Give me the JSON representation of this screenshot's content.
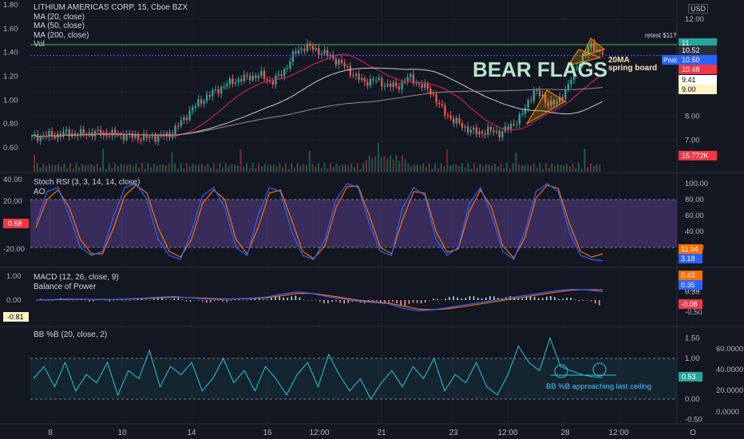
{
  "symbol": "LITHIUM AMERICAS CORP, 15, Cboe BZX",
  "currency": "USD",
  "indicators_main": [
    "MA (20, close)",
    "MA (50, close)",
    "MA (200, close)",
    "Vol"
  ],
  "annotations": {
    "bear_flags": "BEAR FLAGS",
    "ma20_note_1": "20MA",
    "ma20_note_2": "spring board",
    "retest": "retest $11?",
    "bb_note": "BB %B approaching last ceiling"
  },
  "panes": {
    "stoch": {
      "title": "Stoch RSI (3, 3, 14, 14, close)",
      "sub": "AO"
    },
    "macd": {
      "title": "MACD (12, 26, close, 9)",
      "sub": "Balance of Power"
    },
    "bb": {
      "title": "BB %B (20, close, 2)"
    }
  },
  "price_badges": [
    {
      "label": "11.",
      "color": "#26a69a"
    },
    {
      "label": "10.52",
      "color": "#2a2e39"
    },
    {
      "label": "10.50",
      "color": "#2962ff"
    },
    {
      "label": "10.48",
      "color": "#f23645"
    },
    {
      "label": "9.41",
      "color": "#ffffff"
    },
    {
      "label": "9.00",
      "color": "#fff3c4"
    },
    {
      "label": "15.772K",
      "color": "#f23645"
    }
  ],
  "post_label": "Post",
  "stoch_badges": [
    {
      "label": "11.94",
      "color": "#ff6d00"
    },
    {
      "label": "3.18",
      "color": "#2962ff"
    }
  ],
  "stoch_left_badge": "0.68",
  "macd_badges": [
    {
      "label": "0.43",
      "color": "#ff6d00"
    },
    {
      "label": "0.35",
      "color": "#2962ff"
    },
    {
      "label": "-0.08",
      "color": "#f23645"
    }
  ],
  "macd_left_badge": "-0.81",
  "bb_badge": "0.53",
  "colors": {
    "up": "#26a69a",
    "down": "#ef5350",
    "ma20": "#e91e63",
    "ma50": "#c9c9c9",
    "ma200": "#a1887f",
    "stoch_k": "#2962ff",
    "stoch_d": "#ff6d00",
    "bb": "#26c6da",
    "resistance": "#4caf50"
  },
  "chart_data": [
    {
      "type": "line",
      "title": "LITHIUM AMERICAS CORP, 15, Cboe BZX",
      "x_ticks": [
        "8",
        "10",
        "14",
        "16",
        "12:00",
        "21",
        "23",
        "12:00",
        "28",
        "12:00",
        "O"
      ],
      "right_axis_ticks": [
        "12.00",
        "11.00",
        "10.00",
        "9.00",
        "8.00",
        "7.00"
      ],
      "left_axis_ticks": [
        "1.80",
        "1.60",
        "1.40",
        "1.20",
        "1.00",
        "0.80",
        "0.60"
      ],
      "series": [
        {
          "name": "MA (20, close)"
        },
        {
          "name": "MA (50, close)"
        },
        {
          "name": "MA (200, close)"
        }
      ],
      "price_path": [
        7.1,
        7.2,
        7.2,
        7.3,
        7.25,
        7.3,
        7.3,
        7.25,
        7.2,
        7.15,
        7.1,
        7.15,
        7.2,
        7.7,
        8.3,
        8.7,
        9.0,
        9.3,
        9.5,
        9.6,
        9.7,
        9.4,
        9.8,
        10.6,
        10.9,
        10.7,
        10.5,
        10.2,
        9.8,
        9.4,
        9.5,
        9.3,
        9.2,
        9.6,
        9.3,
        9.0,
        8.2,
        7.8,
        7.5,
        7.3,
        7.4,
        7.3,
        7.6,
        8.1,
        9.1,
        8.6,
        8.5,
        9.3,
        10.3,
        10.9,
        10.6
      ],
      "resistance_level": 10.95,
      "reference_level": 10.5
    },
    {
      "type": "line",
      "title": "Stoch RSI (3, 3, 14, 14, close)",
      "right_axis_ticks": [
        "100.00",
        "80.00",
        "60.00",
        "40.00",
        "20.00"
      ],
      "left_axis_ticks": [
        "40.00",
        "20.00",
        "-20.00"
      ],
      "band": [
        20,
        80
      ],
      "k": [
        50,
        90,
        95,
        60,
        20,
        10,
        15,
        60,
        95,
        100,
        80,
        30,
        10,
        5,
        40,
        85,
        95,
        70,
        20,
        10,
        60,
        95,
        90,
        40,
        10,
        5,
        30,
        80,
        100,
        95,
        50,
        15,
        10,
        70,
        95,
        85,
        30,
        10,
        20,
        75,
        95,
        60,
        15,
        5,
        40,
        90,
        100,
        90,
        40,
        10,
        5,
        3
      ],
      "d": [
        45,
        80,
        92,
        70,
        30,
        12,
        12,
        45,
        85,
        98,
        88,
        45,
        15,
        8,
        30,
        75,
        92,
        80,
        30,
        12,
        45,
        88,
        92,
        55,
        15,
        6,
        22,
        70,
        96,
        97,
        60,
        20,
        12,
        55,
        90,
        88,
        40,
        14,
        18,
        65,
        92,
        70,
        22,
        7,
        32,
        82,
        98,
        94,
        50,
        15,
        8,
        12
      ]
    },
    {
      "type": "line",
      "title": "MACD (12, 26, close, 9)",
      "right_axis_ticks": [
        "0.43",
        "0.35",
        "-0.08",
        "-0.50"
      ],
      "left_axis_ticks": [
        "1.00",
        "0.00"
      ],
      "macd": [
        0,
        0.02,
        0.05,
        0.04,
        0.02,
        0.03,
        0.05,
        0.08,
        0.12,
        0.15,
        0.1,
        0.05,
        0.02,
        0.05,
        0.08,
        0.12,
        0.25,
        0.35,
        0.28,
        0.15,
        0.05,
        -0.05,
        -0.1,
        -0.15,
        -0.35,
        -0.45,
        -0.4,
        -0.3,
        -0.2,
        -0.1,
        0.0,
        0.1,
        0.2,
        0.3,
        0.4,
        0.45,
        0.43,
        0.35
      ],
      "signal": [
        0,
        0.01,
        0.03,
        0.04,
        0.03,
        0.03,
        0.04,
        0.06,
        0.09,
        0.12,
        0.11,
        0.08,
        0.05,
        0.05,
        0.06,
        0.09,
        0.18,
        0.28,
        0.28,
        0.2,
        0.1,
        0.0,
        -0.06,
        -0.12,
        -0.25,
        -0.38,
        -0.4,
        -0.35,
        -0.26,
        -0.16,
        -0.06,
        0.04,
        0.14,
        0.24,
        0.34,
        0.42,
        0.44,
        0.43
      ]
    },
    {
      "type": "line",
      "title": "BB %B (20, close, 2)",
      "right_axis_ticks": [
        "1.50",
        "1.00",
        "0.50",
        "0.00",
        "-0.50"
      ],
      "left_axis_ticks": [
        "60.0000",
        "40.0000",
        "20.0000",
        "0.0000"
      ],
      "band": [
        0,
        1
      ],
      "values": [
        0.5,
        0.8,
        0.3,
        0.9,
        0.2,
        0.6,
        0.4,
        0.9,
        0.1,
        0.7,
        0.5,
        1.2,
        0.3,
        0.8,
        0.6,
        0.9,
        0.2,
        0.5,
        1.0,
        0.4,
        0.7,
        0.2,
        0.8,
        0.5,
        0.1,
        0.6,
        0.9,
        0.3,
        1.1,
        0.6,
        0.2,
        0.5,
        0.0,
        0.4,
        0.7,
        0.3,
        0.8,
        0.5,
        1.0,
        0.2,
        0.6,
        0.4,
        0.9,
        0.3,
        0.1,
        0.6,
        1.3,
        0.9,
        0.7,
        1.5,
        0.8,
        0.7,
        0.6,
        0.55,
        0.53
      ]
    }
  ]
}
